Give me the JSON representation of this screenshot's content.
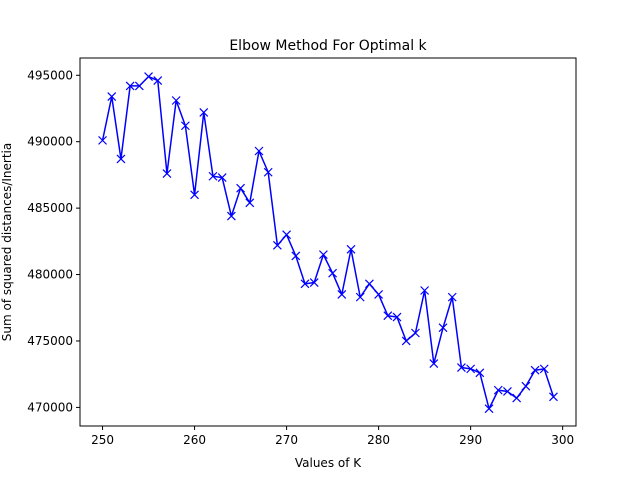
{
  "chart_data": {
    "type": "line",
    "title": "Elbow Method For Optimal k",
    "xlabel": "Values of K",
    "ylabel": "Sum of squared distances/Inertia",
    "xlim": [
      247.55,
      301.45
    ],
    "ylim": [
      468600,
      496300
    ],
    "xticks": [
      250,
      260,
      270,
      280,
      290,
      300
    ],
    "yticks": [
      470000,
      475000,
      480000,
      485000,
      490000,
      495000
    ],
    "grid": false,
    "legend": "none",
    "line_color": "#0000ff",
    "marker": "x",
    "x": [
      250,
      251,
      252,
      253,
      254,
      255,
      256,
      257,
      258,
      259,
      260,
      261,
      262,
      263,
      264,
      265,
      266,
      267,
      268,
      269,
      270,
      271,
      272,
      273,
      274,
      275,
      276,
      277,
      278,
      279,
      280,
      281,
      282,
      283,
      284,
      285,
      286,
      287,
      288,
      289,
      290,
      291,
      292,
      293,
      294,
      295,
      296,
      297,
      298,
      299
    ],
    "y": [
      490100,
      493400,
      488700,
      494200,
      494200,
      494900,
      494600,
      487600,
      493100,
      491200,
      486000,
      492200,
      487400,
      487300,
      484400,
      486500,
      485400,
      489300,
      487700,
      482200,
      483000,
      481400,
      479300,
      479400,
      481500,
      480100,
      478500,
      481900,
      478300,
      479300,
      478500,
      476900,
      476800,
      475000,
      475600,
      478800,
      473300,
      476000,
      478300,
      473000,
      472900,
      472600,
      469900,
      471300,
      471200,
      470700,
      471600,
      472800,
      472900,
      470800
    ]
  }
}
